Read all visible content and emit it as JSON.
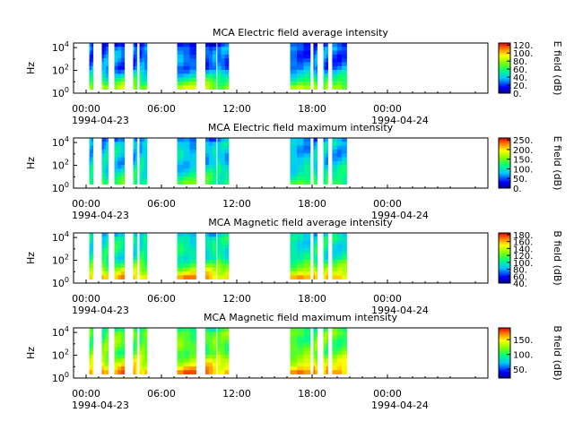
{
  "chart_data": [
    {
      "type": "heatmap",
      "title": "MCA  Electric field average intensity",
      "ylabel": "Hz",
      "ylim_exponent": [
        0,
        4.4
      ],
      "yticks": [
        {
          "b": "10",
          "e": "0",
          "v": 0
        },
        {
          "b": "10",
          "e": "2",
          "v": 2
        },
        {
          "b": "10",
          "e": "4",
          "v": 4
        }
      ],
      "xlim_hours": [
        -1,
        32
      ],
      "xticks": [
        {
          "label": "00:00",
          "h": 0
        },
        {
          "label": "06:00",
          "h": 6
        },
        {
          "label": "12:00",
          "h": 12
        },
        {
          "label": "18:00",
          "h": 18
        },
        {
          "label": "00:00",
          "h": 24
        }
      ],
      "date_start": "1994-04-23",
      "date_end": "1994-04-24",
      "colorbar": {
        "label": "E field (dB)",
        "range": [
          0,
          125
        ],
        "ticks": [
          "0.",
          "20.",
          "40.",
          "60.",
          "80.",
          "100.",
          "120."
        ],
        "tick_values": [
          0,
          20,
          40,
          60,
          80,
          100,
          120
        ]
      },
      "data_intervals_hours": [
        [
          0.25,
          0.55
        ],
        [
          1.25,
          1.75
        ],
        [
          2.25,
          3.05
        ],
        [
          3.75,
          4.05
        ],
        [
          4.25,
          4.85
        ],
        [
          7.25,
          8.75
        ],
        [
          9.5,
          10.35
        ],
        [
          10.45,
          11.35
        ],
        [
          16.25,
          17.85
        ],
        [
          18.1,
          18.4
        ],
        [
          18.9,
          19.25
        ],
        [
          19.6,
          20.75
        ]
      ],
      "palette": "warm"
    },
    {
      "type": "heatmap",
      "title": "MCA  Electric field maximum intensity",
      "ylabel": "Hz",
      "ylim_exponent": [
        0,
        4.4
      ],
      "yticks": [
        {
          "b": "10",
          "e": "0",
          "v": 0
        },
        {
          "b": "10",
          "e": "2",
          "v": 2
        },
        {
          "b": "10",
          "e": "4",
          "v": 4
        }
      ],
      "xlim_hours": [
        -1,
        32
      ],
      "xticks": [
        {
          "label": "00:00",
          "h": 0
        },
        {
          "label": "06:00",
          "h": 6
        },
        {
          "label": "12:00",
          "h": 12
        },
        {
          "label": "18:00",
          "h": 18
        },
        {
          "label": "00:00",
          "h": 24
        }
      ],
      "date_start": "1994-04-23",
      "date_end": "1994-04-24",
      "colorbar": {
        "label": "E field (dB)",
        "range": [
          0,
          260
        ],
        "ticks": [
          "0.",
          "50.",
          "100.",
          "150.",
          "200.",
          "250."
        ],
        "tick_values": [
          0,
          50,
          100,
          150,
          200,
          250
        ]
      },
      "data_intervals_hours": [
        [
          0.25,
          0.55
        ],
        [
          1.25,
          1.75
        ],
        [
          2.25,
          3.05
        ],
        [
          3.75,
          4.05
        ],
        [
          4.25,
          4.85
        ],
        [
          7.25,
          8.75
        ],
        [
          9.5,
          10.35
        ],
        [
          10.45,
          11.35
        ],
        [
          16.25,
          17.85
        ],
        [
          18.1,
          18.4
        ],
        [
          18.9,
          19.25
        ],
        [
          19.6,
          20.75
        ]
      ],
      "palette": "cool"
    },
    {
      "type": "heatmap",
      "title": "MCA  Magnetic field average intensity",
      "ylabel": "Hz",
      "ylim_exponent": [
        0,
        4.4
      ],
      "yticks": [
        {
          "b": "10",
          "e": "0",
          "v": 0
        },
        {
          "b": "10",
          "e": "2",
          "v": 2
        },
        {
          "b": "10",
          "e": "4",
          "v": 4
        }
      ],
      "xlim_hours": [
        -1,
        32
      ],
      "xticks": [
        {
          "label": "00:00",
          "h": 0
        },
        {
          "label": "06:00",
          "h": 6
        },
        {
          "label": "12:00",
          "h": 12
        },
        {
          "label": "18:00",
          "h": 18
        },
        {
          "label": "00:00",
          "h": 24
        }
      ],
      "date_start": "1994-04-23",
      "date_end": "1994-04-24",
      "colorbar": {
        "label": "B field (dB)",
        "range": [
          40,
          185
        ],
        "ticks": [
          "40.",
          "60.",
          "80.",
          "100.",
          "120.",
          "140.",
          "160.",
          "180."
        ],
        "tick_values": [
          40,
          60,
          80,
          100,
          120,
          140,
          160,
          180
        ]
      },
      "data_intervals_hours": [
        [
          0.25,
          0.55
        ],
        [
          1.25,
          1.75
        ],
        [
          2.25,
          3.05
        ],
        [
          3.75,
          4.05
        ],
        [
          4.25,
          4.85
        ],
        [
          7.25,
          8.75
        ],
        [
          9.5,
          10.35
        ],
        [
          10.45,
          11.35
        ],
        [
          16.25,
          17.85
        ],
        [
          18.1,
          18.4
        ],
        [
          18.9,
          19.25
        ],
        [
          19.6,
          20.75
        ]
      ],
      "palette": "mag"
    },
    {
      "type": "heatmap",
      "title": "MCA  Magnetic field maximum intensity",
      "ylabel": "Hz",
      "ylim_exponent": [
        0,
        4.4
      ],
      "yticks": [
        {
          "b": "10",
          "e": "0",
          "v": 0
        },
        {
          "b": "10",
          "e": "2",
          "v": 2
        },
        {
          "b": "10",
          "e": "4",
          "v": 4
        }
      ],
      "xlim_hours": [
        -1,
        32
      ],
      "xticks": [
        {
          "label": "00:00",
          "h": 0
        },
        {
          "label": "06:00",
          "h": 6
        },
        {
          "label": "12:00",
          "h": 12
        },
        {
          "label": "18:00",
          "h": 18
        },
        {
          "label": "00:00",
          "h": 24
        }
      ],
      "date_start": "1994-04-23",
      "date_end": "1994-04-24",
      "colorbar": {
        "label": "B field (dB)",
        "range": [
          20,
          190
        ],
        "ticks": [
          "50.",
          "100.",
          "150."
        ],
        "tick_values": [
          50,
          100,
          150
        ]
      },
      "data_intervals_hours": [
        [
          0.25,
          0.55
        ],
        [
          1.25,
          1.75
        ],
        [
          2.25,
          3.05
        ],
        [
          3.75,
          4.05
        ],
        [
          4.25,
          4.85
        ],
        [
          7.25,
          8.75
        ],
        [
          9.5,
          10.35
        ],
        [
          10.45,
          11.35
        ],
        [
          16.25,
          17.85
        ],
        [
          18.1,
          18.4
        ],
        [
          18.9,
          19.25
        ],
        [
          19.6,
          20.75
        ]
      ],
      "palette": "mag"
    }
  ]
}
